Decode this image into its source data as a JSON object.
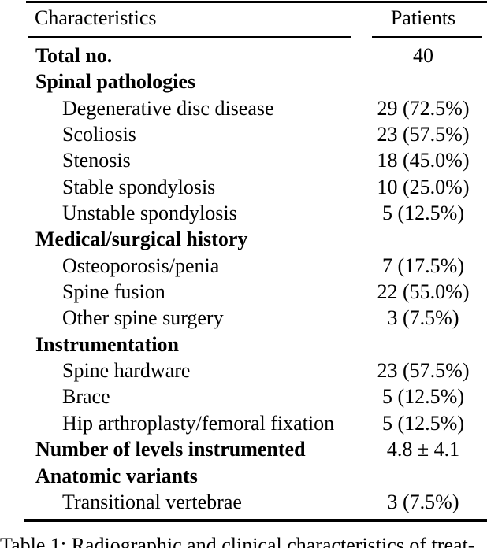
{
  "table": {
    "header": {
      "characteristics": "Characteristics",
      "patients": "Patients"
    },
    "rows": [
      {
        "label": "Total no.",
        "value": "40",
        "style": "section"
      },
      {
        "label": "Spinal pathologies",
        "value": "",
        "style": "section"
      },
      {
        "label": "Degenerative disc disease",
        "value": "29 (72.5%)",
        "style": "item"
      },
      {
        "label": "Scoliosis",
        "value": "23 (57.5%)",
        "style": "item"
      },
      {
        "label": "Stenosis",
        "value": "18 (45.0%)",
        "style": "item"
      },
      {
        "label": "Stable spondylosis",
        "value": "10 (25.0%)",
        "style": "item"
      },
      {
        "label": "Unstable spondylosis",
        "value": "5 (12.5%)",
        "style": "item"
      },
      {
        "label": "Medical/surgical history",
        "value": "",
        "style": "section"
      },
      {
        "label": "Osteoporosis/penia",
        "value": "7 (17.5%)",
        "style": "item"
      },
      {
        "label": "Spine fusion",
        "value": "22 (55.0%)",
        "style": "item"
      },
      {
        "label": "Other spine surgery",
        "value": "3 (7.5%)",
        "style": "item"
      },
      {
        "label": "Instrumentation",
        "value": "",
        "style": "section"
      },
      {
        "label": "Spine hardware",
        "value": "23 (57.5%)",
        "style": "item"
      },
      {
        "label": "Brace",
        "value": "5 (12.5%)",
        "style": "item"
      },
      {
        "label": "Hip arthroplasty/femoral fixation",
        "value": "5 (12.5%)",
        "style": "item"
      },
      {
        "label": "Number of levels instrumented",
        "value": "4.8 ± 4.1",
        "style": "section"
      },
      {
        "label": "Anatomic variants",
        "value": "",
        "style": "section"
      },
      {
        "label": "Transitional vertebrae",
        "value": "3 (7.5%)",
        "style": "item"
      }
    ],
    "caption": "Table 1: Radiographic and clinical characteristics of treat-"
  },
  "colors": {
    "text": "#000000",
    "background": "#ffffff",
    "rule": "#000000"
  }
}
